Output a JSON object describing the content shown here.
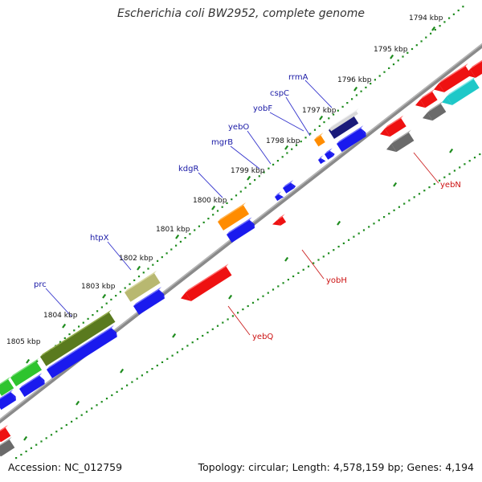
{
  "header": {
    "title": "Escherichia coli BW2952, complete genome"
  },
  "footer": {
    "accession": "Accession: NC_012759",
    "summary": "Topology: circular; Length: 4,578,159 bp; Genes: 4,194"
  },
  "colors": {
    "backbone": "#8a8a8a",
    "tick_dots": "#1e8c1e",
    "forward_label": "#1a1aa6",
    "reverse_label": "#cc1111",
    "leader_forward": "#3333cc",
    "leader_reverse": "#cc2222"
  },
  "scale": {
    "unit": "kbp",
    "ticks": [
      {
        "label": "1794 kbp",
        "value": 1794
      },
      {
        "label": "1795 kbp",
        "value": 1795
      },
      {
        "label": "1796 kbp",
        "value": 1796
      },
      {
        "label": "1797 kbp",
        "value": 1797
      },
      {
        "label": "1798 kbp",
        "value": 1798
      },
      {
        "label": "1799 kbp",
        "value": 1799
      },
      {
        "label": "1800 kbp",
        "value": 1800
      },
      {
        "label": "1801 kbp",
        "value": 1801
      },
      {
        "label": "1802 kbp",
        "value": 1802
      },
      {
        "label": "1803 kbp",
        "value": 1803
      },
      {
        "label": "1804 kbp",
        "value": 1804
      },
      {
        "label": "1805 kbp",
        "value": 1805
      }
    ]
  },
  "genes_forward_labeled": [
    {
      "name": "rrmA",
      "color": "#1a1a7a"
    },
    {
      "name": "cspC",
      "color": "#ff8c00"
    },
    {
      "name": "yobF",
      "color": "#1a1aee"
    },
    {
      "name": "yebO",
      "color": "#1a1aee"
    },
    {
      "name": "mgrB",
      "color": "#1a1aee"
    },
    {
      "name": "kdgR",
      "color": "#ff8c00"
    },
    {
      "name": "htpX",
      "color": "#b8b870"
    },
    {
      "name": "prc",
      "color": "#5a7a1e"
    }
  ],
  "genes_reverse_labeled": [
    {
      "name": "yebN",
      "color": "#ee1111"
    },
    {
      "name": "yobH",
      "color": "#ee1111"
    },
    {
      "name": "yebQ",
      "color": "#ee1111"
    }
  ]
}
